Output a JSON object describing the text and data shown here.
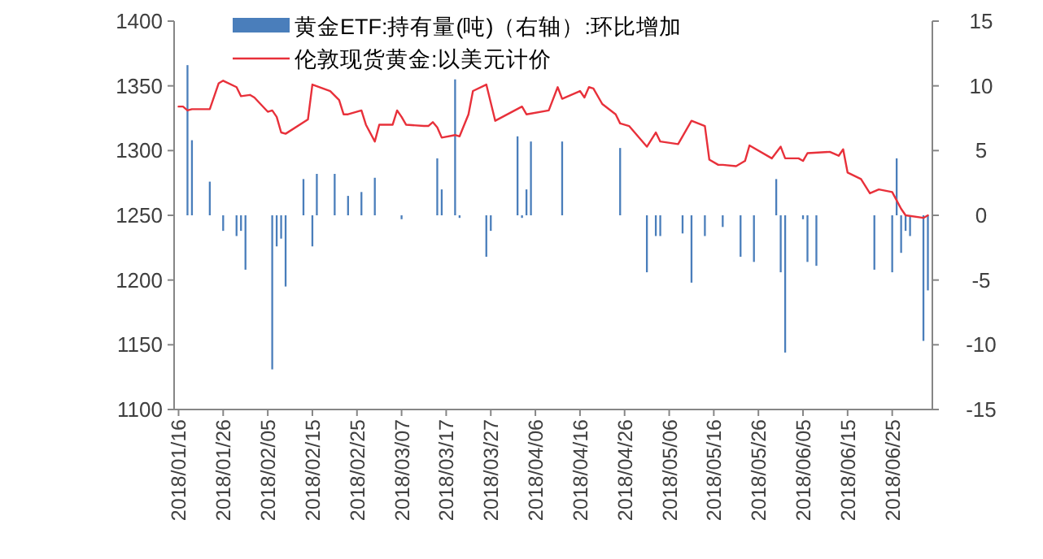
{
  "chart_data": {
    "type": "bar",
    "series": [
      {
        "name": "黄金ETF:持有量(吨)（右轴）:环比增加",
        "axis": "y2",
        "color": "#4a7ebb",
        "x": [
          "2018-01-18",
          "2018-01-19",
          "2018-01-23",
          "2018-01-26",
          "2018-01-29",
          "2018-01-30",
          "2018-01-31",
          "2018-02-06",
          "2018-02-07",
          "2018-02-08",
          "2018-02-09",
          "2018-02-13",
          "2018-02-15",
          "2018-02-16",
          "2018-02-20",
          "2018-02-23",
          "2018-02-26",
          "2018-03-01",
          "2018-03-07",
          "2018-03-15",
          "2018-03-16",
          "2018-03-19",
          "2018-03-20",
          "2018-03-26",
          "2018-03-27",
          "2018-04-02",
          "2018-04-03",
          "2018-04-04",
          "2018-04-05",
          "2018-04-12",
          "2018-04-25",
          "2018-05-01",
          "2018-05-03",
          "2018-05-04",
          "2018-05-09",
          "2018-05-11",
          "2018-05-14",
          "2018-05-18",
          "2018-05-22",
          "2018-05-25",
          "2018-05-30",
          "2018-05-31",
          "2018-06-01",
          "2018-06-05",
          "2018-06-06",
          "2018-06-08",
          "2018-06-21",
          "2018-06-25",
          "2018-06-26",
          "2018-06-27",
          "2018-06-28",
          "2018-06-29",
          "2018-07-02",
          "2018-07-03"
        ],
        "values": [
          11.6,
          5.8,
          2.6,
          -1.2,
          -1.6,
          -1.2,
          -4.2,
          -11.9,
          -2.4,
          -1.8,
          -5.5,
          2.8,
          -2.4,
          3.2,
          3.2,
          1.5,
          1.8,
          2.9,
          -0.3,
          4.4,
          2.0,
          10.5,
          -0.2,
          -3.2,
          -1.2,
          6.1,
          -0.2,
          2.0,
          5.7,
          5.7,
          5.2,
          -4.4,
          -1.6,
          -1.6,
          -1.4,
          -5.2,
          -1.6,
          -0.9,
          -3.2,
          -3.6,
          2.8,
          -4.4,
          -10.6,
          -0.3,
          -3.6,
          -3.9,
          -4.2,
          -4.4,
          4.4,
          -2.9,
          -1.2,
          -1.6,
          -9.7,
          -5.8
        ]
      },
      {
        "name": "伦敦现货黄金:以美元计价",
        "type": "line",
        "color": "#e8303a",
        "x": [
          "2018-01-16",
          "2018-01-17",
          "2018-01-18",
          "2018-01-19",
          "2018-01-23",
          "2018-01-25",
          "2018-01-26",
          "2018-01-29",
          "2018-01-30",
          "2018-02-01",
          "2018-02-02",
          "2018-02-05",
          "2018-02-06",
          "2018-02-07",
          "2018-02-08",
          "2018-02-09",
          "2018-02-14",
          "2018-02-15",
          "2018-02-19",
          "2018-02-21",
          "2018-02-22",
          "2018-02-23",
          "2018-02-26",
          "2018-02-27",
          "2018-03-01",
          "2018-03-02",
          "2018-03-05",
          "2018-03-06",
          "2018-03-07",
          "2018-03-08",
          "2018-03-12",
          "2018-03-13",
          "2018-03-14",
          "2018-03-15",
          "2018-03-16",
          "2018-03-19",
          "2018-03-20",
          "2018-03-22",
          "2018-03-23",
          "2018-03-26",
          "2018-03-28",
          "2018-04-03",
          "2018-04-04",
          "2018-04-09",
          "2018-04-11",
          "2018-04-12",
          "2018-04-16",
          "2018-04-17",
          "2018-04-18",
          "2018-04-19",
          "2018-04-21",
          "2018-04-24",
          "2018-04-25",
          "2018-04-27",
          "2018-05-01",
          "2018-05-03",
          "2018-05-04",
          "2018-05-08",
          "2018-05-11",
          "2018-05-14",
          "2018-05-15",
          "2018-05-17",
          "2018-05-18",
          "2018-05-21",
          "2018-05-23",
          "2018-05-24",
          "2018-05-29",
          "2018-05-31",
          "2018-06-01",
          "2018-06-04",
          "2018-06-05",
          "2018-06-06",
          "2018-06-11",
          "2018-06-13",
          "2018-06-14",
          "2018-06-15",
          "2018-06-18",
          "2018-06-20",
          "2018-06-22",
          "2018-06-25",
          "2018-06-27",
          "2018-06-28",
          "2018-07-02",
          "2018-07-03"
        ],
        "values": [
          1334,
          1334,
          1331,
          1332,
          1332,
          1352,
          1354,
          1349,
          1342,
          1343,
          1341,
          1330,
          1331,
          1326,
          1314,
          1313,
          1324,
          1351,
          1346,
          1339,
          1328,
          1328,
          1331,
          1320,
          1307,
          1320,
          1320,
          1331,
          1326,
          1320,
          1319,
          1319,
          1322,
          1318,
          1310,
          1312,
          1311,
          1328,
          1346,
          1351,
          1323,
          1334,
          1328,
          1331,
          1349,
          1340,
          1346,
          1341,
          1349,
          1348,
          1336,
          1328,
          1321,
          1319,
          1303,
          1314,
          1307,
          1305,
          1323,
          1319,
          1293,
          1289,
          1289,
          1288,
          1292,
          1304,
          1294,
          1303,
          1294,
          1294,
          1292,
          1298,
          1299,
          1296,
          1301,
          1283,
          1278,
          1267,
          1270,
          1268,
          1255,
          1250,
          1248,
          1250
        ]
      }
    ],
    "xlim": [
      "2018-01-15",
      "2018-07-04"
    ],
    "xticks": [
      {
        "value": "2018-01-16",
        "label": "2018/01/16"
      },
      {
        "value": "2018-01-26",
        "label": "2018/01/26"
      },
      {
        "value": "2018-02-05",
        "label": "2018/02/05"
      },
      {
        "value": "2018-02-15",
        "label": "2018/02/15"
      },
      {
        "value": "2018-02-25",
        "label": "2018/02/25"
      },
      {
        "value": "2018-03-07",
        "label": "2018/03/07"
      },
      {
        "value": "2018-03-17",
        "label": "2018/03/17"
      },
      {
        "value": "2018-03-27",
        "label": "2018/03/27"
      },
      {
        "value": "2018-04-06",
        "label": "2018/04/06"
      },
      {
        "value": "2018-04-16",
        "label": "2018/04/16"
      },
      {
        "value": "2018-04-26",
        "label": "2018/04/26"
      },
      {
        "value": "2018-05-06",
        "label": "2018/05/06"
      },
      {
        "value": "2018-05-16",
        "label": "2018/05/16"
      },
      {
        "value": "2018-05-26",
        "label": "2018/05/26"
      },
      {
        "value": "2018-06-05",
        "label": "2018/06/05"
      },
      {
        "value": "2018-06-15",
        "label": "2018/06/15"
      },
      {
        "value": "2018-06-25",
        "label": "2018/06/25"
      }
    ],
    "ylim": [
      1100,
      1400
    ],
    "yticks": [
      1100,
      1150,
      1200,
      1250,
      1300,
      1350,
      1400
    ],
    "y2lim": [
      -15,
      15
    ],
    "y2ticks": [
      -15,
      -10,
      -5,
      0,
      5,
      10,
      15
    ],
    "legend": "top",
    "grid": false,
    "marker": "none"
  }
}
